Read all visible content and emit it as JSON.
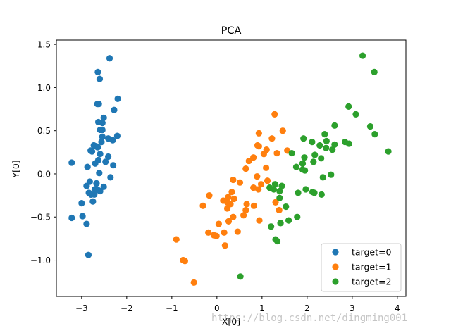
{
  "watermark": "https://blog.csdn.net/dingming001",
  "chart_data": {
    "type": "scatter",
    "title": "PCA",
    "xlabel": "X[0]",
    "ylabel": "Y[0]",
    "xlim": [
      -3.56,
      4.19
    ],
    "ylim": [
      -1.42,
      1.55
    ],
    "xticks": [
      -3,
      -2,
      -1,
      0,
      1,
      2,
      3,
      4
    ],
    "yticks": [
      -1.0,
      -0.5,
      0.0,
      0.5,
      1.0,
      1.5
    ],
    "xtick_labels": [
      "−3",
      "−2",
      "−1",
      "0",
      "1",
      "2",
      "3",
      "4"
    ],
    "ytick_labels": [
      "−1.0",
      "−0.5",
      "0.0",
      "0.5",
      "1.0",
      "1.5"
    ],
    "grid": false,
    "legend_position": "lower-right",
    "series": [
      {
        "name": "target=0",
        "color": "#1f77b4",
        "points": [
          [
            -2.68,
            0.32
          ],
          [
            -2.71,
            -0.18
          ],
          [
            -2.89,
            -0.14
          ],
          [
            -2.75,
            -0.32
          ],
          [
            -2.73,
            0.33
          ],
          [
            -2.28,
            0.74
          ],
          [
            -2.82,
            -0.09
          ],
          [
            -2.63,
            0.16
          ],
          [
            -2.89,
            -0.58
          ],
          [
            -2.67,
            -0.11
          ],
          [
            -2.51,
            0.65
          ],
          [
            -2.61,
            0.01
          ],
          [
            -2.79,
            -0.24
          ],
          [
            -3.22,
            -0.51
          ],
          [
            -2.64,
            1.18
          ],
          [
            -2.38,
            1.34
          ],
          [
            -2.62,
            0.81
          ],
          [
            -2.65,
            0.31
          ],
          [
            -2.2,
            0.87
          ],
          [
            -2.59,
            0.51
          ],
          [
            -2.31,
            0.39
          ],
          [
            -2.54,
            0.43
          ],
          [
            -3.22,
            0.13
          ],
          [
            -2.3,
            0.1
          ],
          [
            -2.36,
            -0.04
          ],
          [
            -2.51,
            -0.15
          ],
          [
            -2.47,
            0.14
          ],
          [
            -2.56,
            0.37
          ],
          [
            -2.64,
            0.31
          ],
          [
            -2.63,
            -0.19
          ],
          [
            -2.59,
            -0.2
          ],
          [
            -2.41,
            0.41
          ],
          [
            -2.65,
            0.81
          ],
          [
            -2.6,
            1.1
          ],
          [
            -2.67,
            -0.11
          ],
          [
            -2.87,
            0.08
          ],
          [
            -2.63,
            0.6
          ],
          [
            -2.8,
            0.27
          ],
          [
            -2.98,
            -0.49
          ],
          [
            -2.59,
            0.23
          ],
          [
            -2.77,
            0.26
          ],
          [
            -2.85,
            -0.94
          ],
          [
            -3.0,
            -0.34
          ],
          [
            -2.41,
            0.2
          ],
          [
            -2.21,
            0.44
          ],
          [
            -2.72,
            -0.24
          ],
          [
            -2.54,
            0.51
          ],
          [
            -2.84,
            -0.22
          ],
          [
            -2.54,
            0.59
          ],
          [
            -2.7,
            0.12
          ]
        ]
      },
      {
        "name": "target=1",
        "color": "#ff7f0e",
        "points": [
          [
            1.28,
            0.69
          ],
          [
            0.93,
            0.32
          ],
          [
            1.46,
            0.5
          ],
          [
            0.18,
            -0.83
          ],
          [
            1.09,
            0.07
          ],
          [
            0.64,
            -0.42
          ],
          [
            1.1,
            0.28
          ],
          [
            -0.75,
            -1.0
          ],
          [
            1.04,
            0.23
          ],
          [
            -0.01,
            -0.72
          ],
          [
            -0.51,
            -1.26
          ],
          [
            0.51,
            -0.1
          ],
          [
            0.26,
            -0.55
          ],
          [
            0.98,
            -0.12
          ],
          [
            -0.17,
            -0.25
          ],
          [
            0.93,
            0.47
          ],
          [
            0.66,
            -0.35
          ],
          [
            0.23,
            -0.33
          ],
          [
            0.94,
            -0.54
          ],
          [
            0.04,
            -0.58
          ],
          [
            1.12,
            -0.08
          ],
          [
            0.36,
            -0.07
          ],
          [
            1.3,
            -0.33
          ],
          [
            0.92,
            -0.18
          ],
          [
            0.71,
            0.15
          ],
          [
            0.9,
            0.33
          ],
          [
            1.33,
            0.24
          ],
          [
            1.56,
            0.27
          ],
          [
            0.81,
            -0.16
          ],
          [
            -0.31,
            -0.37
          ],
          [
            -0.07,
            -0.71
          ],
          [
            -0.19,
            -0.68
          ],
          [
            0.14,
            -0.31
          ],
          [
            1.38,
            -0.42
          ],
          [
            0.59,
            -0.48
          ],
          [
            0.81,
            0.19
          ],
          [
            1.22,
            0.41
          ],
          [
            0.82,
            -0.37
          ],
          [
            0.25,
            -0.27
          ],
          [
            0.16,
            -0.68
          ],
          [
            0.46,
            -0.67
          ],
          [
            0.89,
            -0.03
          ],
          [
            0.23,
            -0.4
          ],
          [
            -0.71,
            -1.01
          ],
          [
            0.36,
            -0.5
          ],
          [
            0.33,
            -0.21
          ],
          [
            0.38,
            -0.29
          ],
          [
            0.64,
            0.06
          ],
          [
            -0.9,
            -0.76
          ],
          [
            0.3,
            -0.35
          ]
        ]
      },
      {
        "name": "target=2",
        "color": "#2ca02c",
        "points": [
          [
            2.53,
            -0.01
          ],
          [
            1.41,
            -0.57
          ],
          [
            2.61,
            0.34
          ],
          [
            1.97,
            -0.18
          ],
          [
            2.35,
            -0.04
          ],
          [
            3.4,
            0.55
          ],
          [
            0.52,
            -1.19
          ],
          [
            2.93,
            0.35
          ],
          [
            2.32,
            -0.24
          ],
          [
            2.92,
            0.78
          ],
          [
            1.66,
            0.24
          ],
          [
            1.8,
            -0.22
          ],
          [
            2.17,
            0.22
          ],
          [
            1.34,
            -0.78
          ],
          [
            1.59,
            -0.54
          ],
          [
            1.9,
            0.12
          ],
          [
            1.95,
            0.04
          ],
          [
            3.49,
            1.18
          ],
          [
            3.8,
            0.26
          ],
          [
            1.3,
            -0.76
          ],
          [
            2.43,
            0.38
          ],
          [
            1.2,
            -0.61
          ],
          [
            3.5,
            0.46
          ],
          [
            1.39,
            -0.2
          ],
          [
            2.28,
            0.33
          ],
          [
            2.61,
            0.56
          ],
          [
            1.26,
            -0.18
          ],
          [
            1.29,
            -0.12
          ],
          [
            2.12,
            -0.21
          ],
          [
            2.39,
            0.46
          ],
          [
            2.84,
            0.37
          ],
          [
            3.23,
            1.37
          ],
          [
            2.16,
            -0.22
          ],
          [
            1.44,
            -0.14
          ],
          [
            1.78,
            -0.5
          ],
          [
            3.08,
            0.69
          ],
          [
            2.14,
            0.14
          ],
          [
            1.9,
            0.05
          ],
          [
            1.17,
            -0.16
          ],
          [
            2.11,
            0.37
          ],
          [
            2.31,
            0.18
          ],
          [
            1.92,
            0.41
          ],
          [
            1.41,
            -0.57
          ],
          [
            2.56,
            0.28
          ],
          [
            2.42,
            0.3
          ],
          [
            1.94,
            0.19
          ],
          [
            1.53,
            -0.38
          ],
          [
            1.76,
            0.08
          ],
          [
            1.9,
            0.12
          ],
          [
            1.39,
            -0.28
          ]
        ]
      }
    ]
  }
}
